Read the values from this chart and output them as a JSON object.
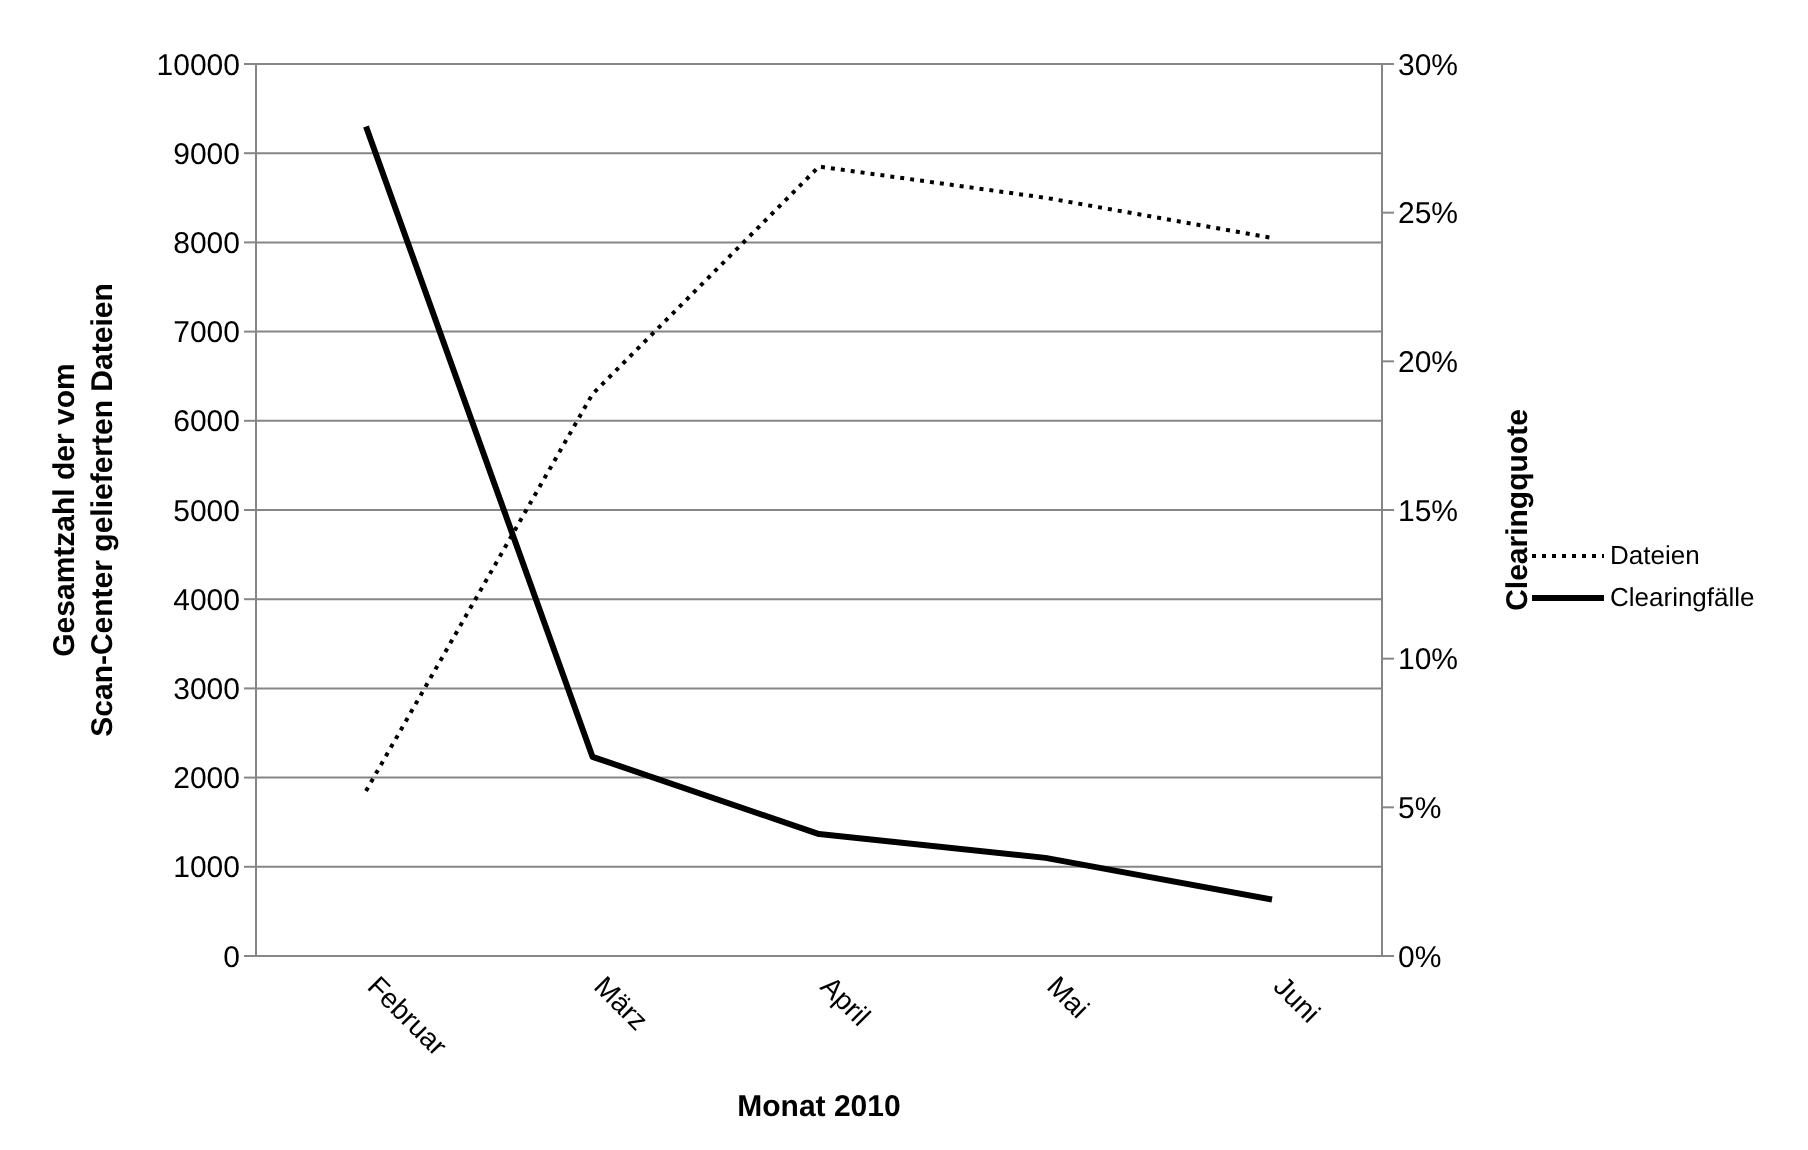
{
  "chart_data": {
    "type": "line",
    "xlabel": "Monat 2010",
    "ylabel": "Gesamtzahl der vom\nScan-Center gelieferten Dateien",
    "y2label": "Clearingquote",
    "categories": [
      "Februar",
      "März",
      "April",
      "Mai",
      "Juni"
    ],
    "series": [
      {
        "name": "Dateien",
        "color": "#000000",
        "line_style": "dotted",
        "values": [
          1850,
          6300,
          8850,
          8500,
          8050
        ]
      },
      {
        "name": "Clearingfälle",
        "color": "#000000",
        "line_style": "solid",
        "axis": "y2",
        "values": [
          27.9,
          6.7,
          4.1,
          3.3,
          1.9
        ]
      }
    ],
    "ylim": [
      0,
      10000
    ],
    "yticks": [
      0,
      1000,
      2000,
      3000,
      4000,
      5000,
      6000,
      7000,
      8000,
      9000,
      10000
    ],
    "y2lim": [
      0,
      30
    ],
    "y2ticks": [
      {
        "value": 0,
        "label": "0%"
      },
      {
        "value": 5,
        "label": "5%"
      },
      {
        "value": 10,
        "label": "10%"
      },
      {
        "value": 15,
        "label": "15%"
      },
      {
        "value": 20,
        "label": "20%"
      },
      {
        "value": 25,
        "label": "25%"
      },
      {
        "value": 30,
        "label": "30%"
      }
    ],
    "grid": "y",
    "legend": "right",
    "marker": "none"
  }
}
